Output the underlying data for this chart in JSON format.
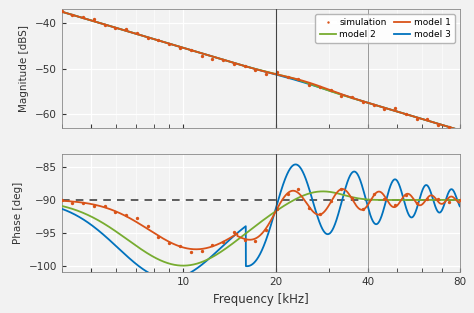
{
  "freq_range": [
    4,
    80
  ],
  "mag_ylim": [
    -63,
    -37
  ],
  "mag_yticks": [
    -60,
    -50,
    -40
  ],
  "phase_ylim": [
    -101,
    -83
  ],
  "phase_yticks": [
    -100,
    -95,
    -90,
    -85
  ],
  "vline_freq": 20,
  "vline2_freq": 40,
  "dashed_phase": -90,
  "colors": {
    "simulation": "#d95319",
    "model1": "#d95319",
    "model2": "#77ac30",
    "model3": "#0072bd"
  },
  "xlabel": "Frequency [kHz]",
  "ylabel_mag": "Magnitude [dBS]",
  "ylabel_phase": "Phase [deg]",
  "background": "#f2f2f2",
  "grid_color": "#ffffff",
  "tick_color": "#333333",
  "lw": 1.3
}
